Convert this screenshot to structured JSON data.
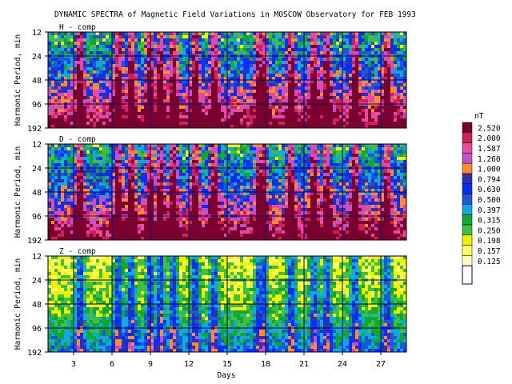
{
  "chart_data": {
    "type": "heatmap",
    "title": "DYNAMIC SPECTRA of Magnetic Field Variations in MOSCOW Observatory for FEB 1993",
    "xlabel": "Days",
    "ylabel": "Harmonic Period, min",
    "x_range": [
      1,
      29
    ],
    "x_ticks": [
      "3",
      "6",
      "9",
      "12",
      "15",
      "18",
      "21",
      "24",
      "27"
    ],
    "y_scale": "log",
    "y_ticks": [
      "12",
      "24",
      "48",
      "96",
      "192"
    ],
    "panels": [
      {
        "label": "H - comp",
        "y_ticks": [
          "12",
          "24",
          "48",
          "96",
          "192"
        ]
      },
      {
        "label": "D - comp",
        "y_ticks": [
          "12",
          "24",
          "48",
          "96",
          "192"
        ]
      },
      {
        "label": "Z - comp",
        "y_ticks": [
          "12",
          "24",
          "48",
          "96",
          "192"
        ]
      }
    ],
    "colorbar": {
      "unit": "nT",
      "levels": [
        "2.520",
        "2.000",
        "1.587",
        "1.260",
        "1.000",
        "0.794",
        "0.630",
        "0.500",
        "0.397",
        "0.315",
        "0.250",
        "0.198",
        "0.157",
        "0.125"
      ],
      "colors": [
        "#7a0030",
        "#d0205a",
        "#e84aa0",
        "#c450c8",
        "#ff8a30",
        "#3030b0",
        "#0030ff",
        "#1a5ad8",
        "#10a8e0",
        "#10a830",
        "#40c040",
        "#f0f000",
        "#ffff60",
        "#ffffc0"
      ]
    },
    "grid": true,
    "activity_days": [
      3.5,
      6.5,
      7.5,
      9,
      9.8,
      10.8,
      12.5,
      14,
      17.5,
      17.8,
      20,
      21.8,
      22.8,
      25,
      27.5
    ]
  }
}
